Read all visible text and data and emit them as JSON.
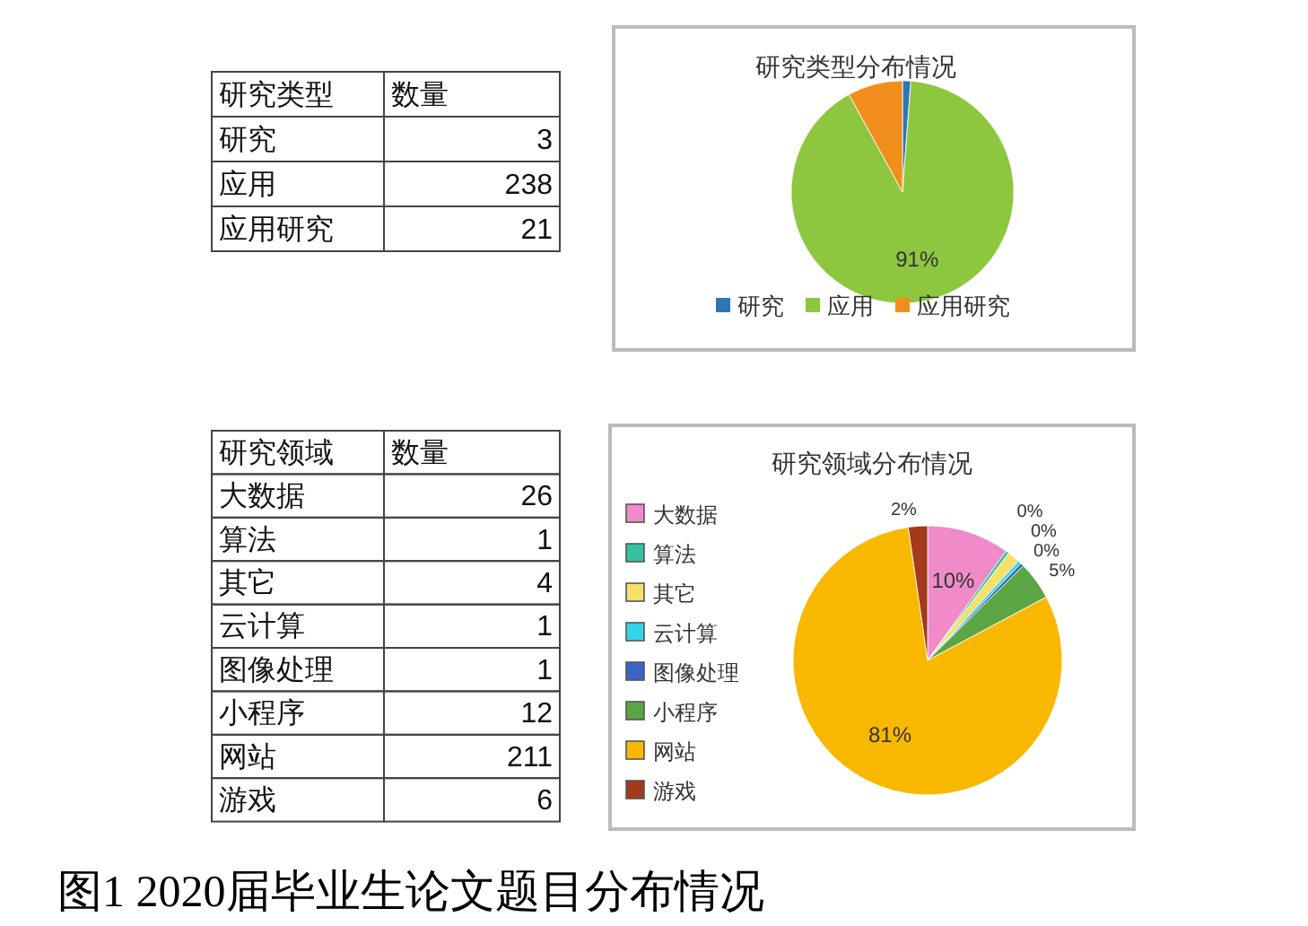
{
  "chart_data": [
    {
      "type": "other",
      "xlabel": "研究类型",
      "ylabel": "数量",
      "categories": [
        "研究",
        "应用",
        "应用研究"
      ],
      "values": [
        3,
        238,
        21
      ],
      "data_labels": true
    },
    {
      "type": "pie",
      "title": "研究类型分布情况",
      "categories": [
        "研究",
        "应用",
        "应用研究"
      ],
      "values": [
        1.2,
        90.8,
        8.0
      ],
      "colors": [
        "#2e75b6",
        "#8dc63f",
        "#f28e1c"
      ],
      "value_labels": [
        null,
        "91%",
        null
      ],
      "legend": "bottom"
    },
    {
      "type": "other",
      "xlabel": "研究领域",
      "ylabel": "数量",
      "categories": [
        "大数据",
        "算法",
        "其它",
        "云计算",
        "图像处理",
        "小程序",
        "网站",
        "游戏"
      ],
      "values": [
        26,
        1,
        4,
        1,
        1,
        12,
        211,
        6
      ],
      "data_labels": true
    },
    {
      "type": "pie",
      "title": "研究领域分布情况",
      "categories": [
        "大数据",
        "算法",
        "其它",
        "云计算",
        "图像处理",
        "小程序",
        "网站",
        "游戏"
      ],
      "values": [
        9.9,
        0.4,
        1.5,
        0.4,
        0.4,
        4.6,
        80.5,
        2.3
      ],
      "colors": [
        "#f08ac8",
        "#33c3a0",
        "#f5e06a",
        "#33d6e8",
        "#3a64c8",
        "#5aa645",
        "#f8b800",
        "#a33a1a"
      ],
      "value_labels": [
        "10%",
        "0%",
        null,
        "0%",
        "0%",
        "5%",
        "81%",
        "2%"
      ],
      "legend": "left",
      "annotations": [
        "图1 2020届毕业生论文题目分布情况"
      ]
    }
  ]
}
